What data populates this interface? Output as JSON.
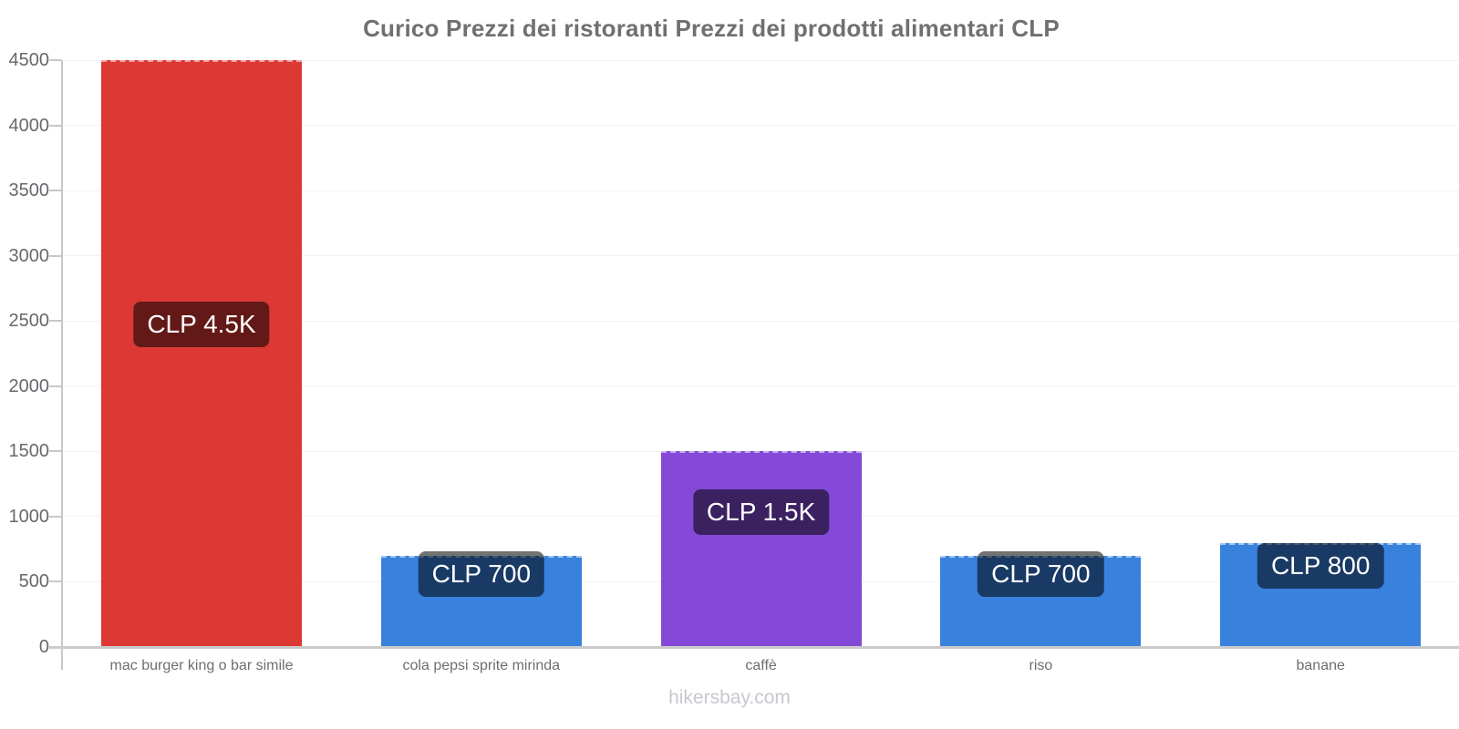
{
  "header": {
    "title": "Curico Prezzi dei ristoranti Prezzi dei prodotti alimentari CLP"
  },
  "footer": {
    "text": "hikersbay.com"
  },
  "chart_data": {
    "type": "bar",
    "title": "Curico Prezzi dei ristoranti Prezzi dei prodotti alimentari CLP",
    "currency": "CLP",
    "categories": [
      "mac burger king o bar simile",
      "cola pepsi sprite mirinda",
      "caffè",
      "riso",
      "banane"
    ],
    "values": [
      4500,
      700,
      1500,
      700,
      800
    ],
    "value_labels": [
      "CLP 4.5K",
      "CLP 700",
      "CLP 1.5K",
      "CLP 700",
      "CLP 800"
    ],
    "bar_colors": [
      "#dc3834",
      "#3882de",
      "#8549d8",
      "#3882de",
      "#3882de"
    ],
    "xlabel": "",
    "ylabel": "",
    "ylim": [
      0,
      4500
    ],
    "yticks": [
      0,
      500,
      1000,
      1500,
      2000,
      2500,
      3000,
      3500,
      4000,
      4500
    ],
    "grid": "horizontal-faint",
    "legend": "none",
    "label_style": {
      "background": "rgba(0,0,0,0.55)",
      "text_color": "#ffffff"
    },
    "colors": {
      "axis": "#c8c8c8",
      "baseline": "#cbcbcb",
      "gridline": "#f3f3f3",
      "tick_text": "#66696d",
      "title_text": "#6f7072",
      "category_text": "#6b6f73",
      "footer_text": "#c7c7d0",
      "background": "#ffffff"
    }
  }
}
